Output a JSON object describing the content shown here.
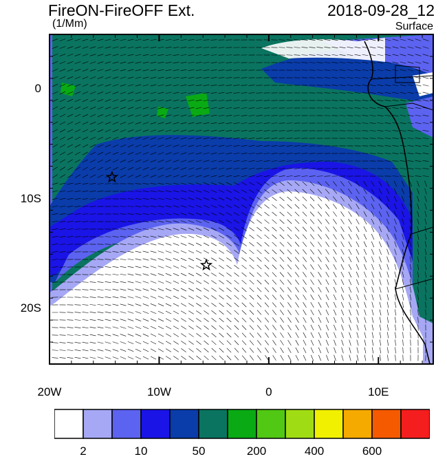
{
  "title": "FireON-FireOFF Ext.",
  "datetime": "2018-09-28_12",
  "units": "(1/Mm)",
  "level": "Surface",
  "axes": {
    "lon_ticks": [
      {
        "lon": -20,
        "label": "20W"
      },
      {
        "lon": -10,
        "label": "10W"
      },
      {
        "lon": 0,
        "label": "0"
      },
      {
        "lon": 10,
        "label": "10E"
      }
    ],
    "lat_ticks": [
      {
        "lat": 0,
        "label": "0"
      },
      {
        "lat": -10,
        "label": "10S"
      },
      {
        "lat": -20,
        "label": "20S"
      }
    ],
    "lon_range": [
      -20,
      15
    ],
    "lat_range": [
      -25,
      5
    ]
  },
  "colorbar": {
    "colors": [
      "#ffffff",
      "#a6a8f5",
      "#5c63f0",
      "#1a14e6",
      "#0a3caa",
      "#0a7460",
      "#0aaa14",
      "#50c814",
      "#a0dc14",
      "#f0f000",
      "#f5aa00",
      "#f55a00",
      "#f51e1e"
    ],
    "labels": [
      {
        "text": "2",
        "index": 1
      },
      {
        "text": "10",
        "index": 3
      },
      {
        "text": "50",
        "index": 5
      },
      {
        "text": "200",
        "index": 7
      },
      {
        "text": "400",
        "index": 9
      },
      {
        "text": "600",
        "index": 11
      }
    ]
  },
  "markers": [
    {
      "icon": "star-icon",
      "lon": -14.3,
      "lat": -8.0
    },
    {
      "icon": "star-icon",
      "lon": -5.7,
      "lat": -16.0
    }
  ]
}
